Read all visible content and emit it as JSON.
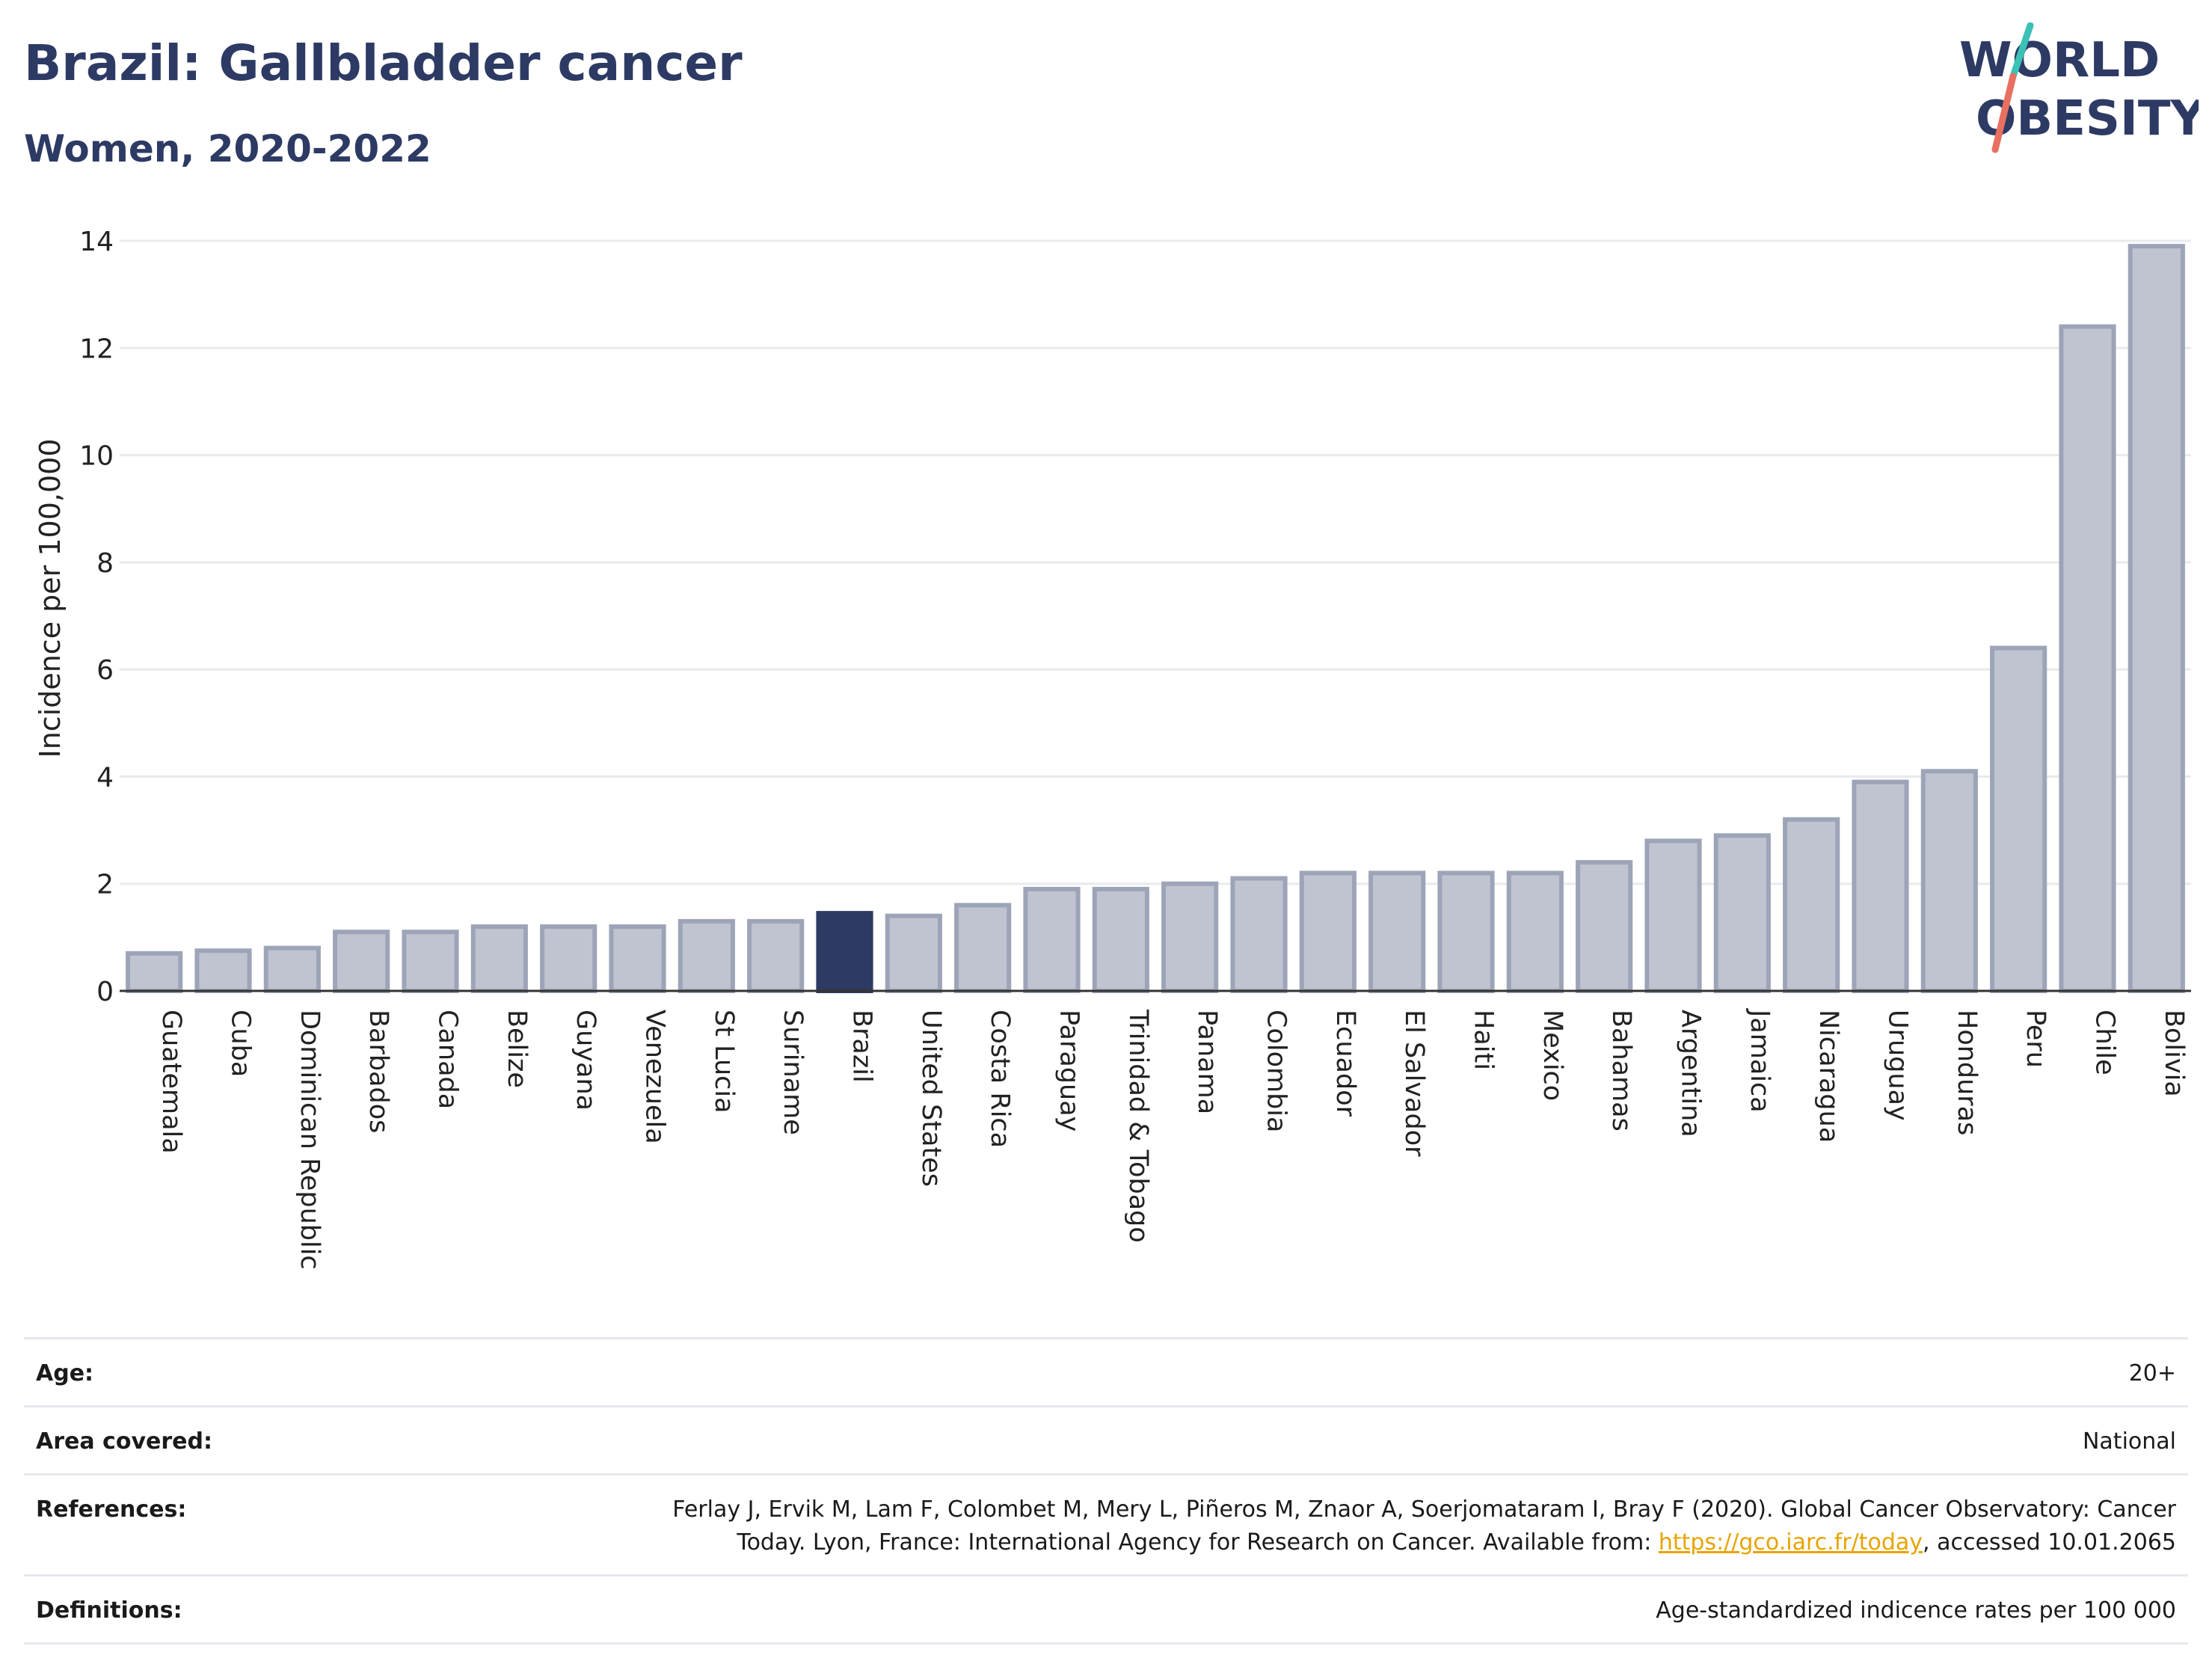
{
  "header": {
    "title": "Brazil: Gallbladder cancer",
    "subtitle": "Women, 2020-2022"
  },
  "logo": {
    "line1": "WORLD",
    "line2": "OBESITY",
    "accent_teal": "#3cc1b6",
    "accent_coral": "#e8705f",
    "text_color": "#2d3a64"
  },
  "colors": {
    "bar": "#c0c4d0",
    "bar_border": "#9ea4b8",
    "highlight": "#2d3a64",
    "grid": "#e9eaee"
  },
  "chart_data": {
    "type": "bar",
    "ylabel": "Incidence per 100,000",
    "ylim": [
      0,
      14
    ],
    "yticks": [
      0,
      2,
      4,
      6,
      8,
      10,
      12,
      14
    ],
    "highlight_category": "Brazil",
    "grid": true,
    "categories": [
      "Guatemala",
      "Cuba",
      "Dominican Republic",
      "Barbados",
      "Canada",
      "Belize",
      "Guyana",
      "Venezuela",
      "St Lucia",
      "Suriname",
      "Brazil",
      "United States",
      "Costa Rica",
      "Paraguay",
      "Trinidad & Tobago",
      "Panama",
      "Colombia",
      "Ecuador",
      "El Salvador",
      "Haiti",
      "Mexico",
      "Bahamas",
      "Argentina",
      "Jamaica",
      "Nicaragua",
      "Uruguay",
      "Honduras",
      "Peru",
      "Chile",
      "Bolivia"
    ],
    "values": [
      0.7,
      0.75,
      0.8,
      1.1,
      1.1,
      1.2,
      1.2,
      1.2,
      1.3,
      1.3,
      1.45,
      1.4,
      1.6,
      1.9,
      1.9,
      2.0,
      2.1,
      2.2,
      2.2,
      2.2,
      2.2,
      2.4,
      2.8,
      2.9,
      3.2,
      3.9,
      4.1,
      6.4,
      12.4,
      13.9
    ]
  },
  "meta": {
    "age_label": "Age:",
    "age_value": "20+",
    "area_label": "Area covered:",
    "area_value": "National",
    "references_label": "References:",
    "references_line1": "Ferlay J, Ervik M, Lam F, Colombet M, Mery L, Piñeros M, Znaor A, Soerjomataram I, Bray F (2020). Global Cancer Observatory: Cancer",
    "references_line2_pre": "Today. Lyon, France: International Agency for Research on Cancer. Available from: ",
    "references_link": "https://gco.iarc.fr/today",
    "references_line2_post": ", accessed 10.01.2065",
    "definitions_label": "Definitions:",
    "definitions_value": "Age-standardized indicence rates per 100 000"
  }
}
